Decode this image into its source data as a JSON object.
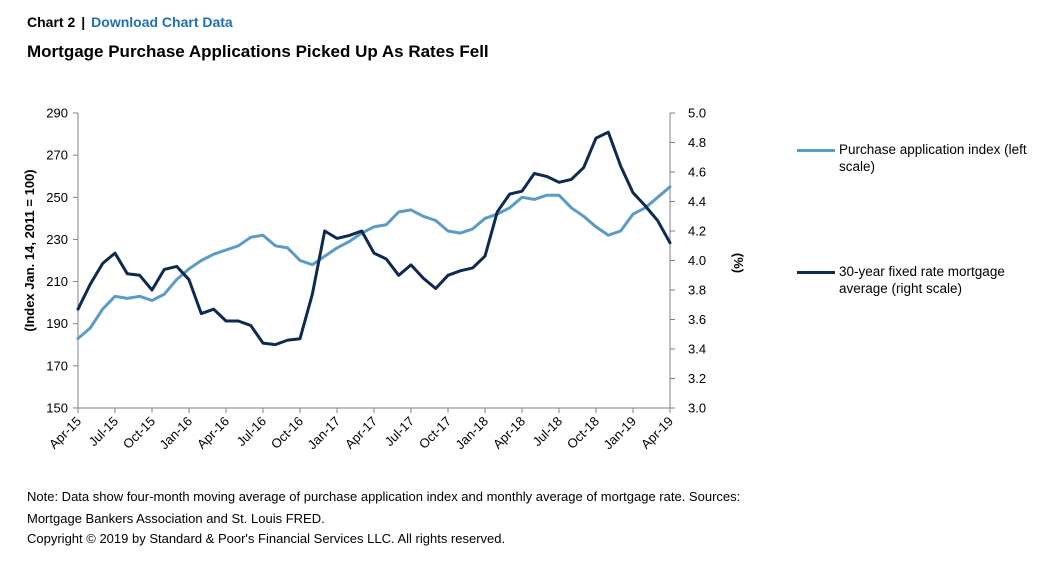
{
  "header": {
    "chart_label": "Chart 2",
    "separator": "|",
    "download_link": "Download Chart Data"
  },
  "title": "Mortgage Purchase Applications Picked Up As Rates Fell",
  "note": "Note: Data show four-month moving average of purchase application index and monthly average of mortgage rate. Sources: Mortgage Bankers Association and St. Louis FRED.",
  "copyright": "Copyright © 2019 by Standard & Poor's Financial Services LLC. All rights reserved.",
  "colors": {
    "index_series": "#5b9bc8",
    "rate_series": "#0d2a52",
    "axis": "#808080"
  },
  "chart_data": {
    "type": "line",
    "title": "Mortgage Purchase Applications Picked Up As Rates Fell",
    "ylabel_left": "(Index Jan. 14, 2011 = 100)",
    "ylabel_right": "(%)",
    "ylim_left": [
      150,
      290
    ],
    "ylim_right": [
      3.0,
      5.0
    ],
    "yticks_left": [
      "150",
      "170",
      "190",
      "210",
      "230",
      "250",
      "270",
      "290"
    ],
    "yticks_right": [
      "3.0",
      "3.2",
      "3.4",
      "3.6",
      "3.8",
      "4.0",
      "4.2",
      "4.4",
      "4.6",
      "4.8",
      "5.0"
    ],
    "x_tick_labels": [
      "Apr-15",
      "Jul-15",
      "Oct-15",
      "Jan-16",
      "Apr-16",
      "Jul-16",
      "Oct-16",
      "Jan-17",
      "Apr-17",
      "Jul-17",
      "Oct-17",
      "Jan-18",
      "Apr-18",
      "Jul-18",
      "Oct-18",
      "Jan-19",
      "Apr-19"
    ],
    "x": [
      "Apr-15",
      "May-15",
      "Jun-15",
      "Jul-15",
      "Aug-15",
      "Sep-15",
      "Oct-15",
      "Nov-15",
      "Dec-15",
      "Jan-16",
      "Feb-16",
      "Mar-16",
      "Apr-16",
      "May-16",
      "Jun-16",
      "Jul-16",
      "Aug-16",
      "Sep-16",
      "Oct-16",
      "Nov-16",
      "Dec-16",
      "Jan-17",
      "Feb-17",
      "Mar-17",
      "Apr-17",
      "May-17",
      "Jun-17",
      "Jul-17",
      "Aug-17",
      "Sep-17",
      "Oct-17",
      "Nov-17",
      "Dec-17",
      "Jan-18",
      "Feb-18",
      "Mar-18",
      "Apr-18",
      "May-18",
      "Jun-18",
      "Jul-18",
      "Aug-18",
      "Sep-18",
      "Oct-18",
      "Nov-18",
      "Dec-18",
      "Jan-19",
      "Feb-19",
      "Mar-19",
      "Apr-19"
    ],
    "series": [
      {
        "name": "Purchase application index (left scale)",
        "axis": "left",
        "values": [
          183,
          188,
          197,
          203,
          202,
          203,
          201,
          204,
          211,
          216,
          220,
          223,
          225,
          227,
          231,
          232,
          227,
          226,
          220,
          218,
          222,
          226,
          229,
          233,
          236,
          237,
          243,
          244,
          241,
          239,
          234,
          233,
          235,
          240,
          242,
          245,
          250,
          249,
          251,
          251,
          245,
          241,
          236,
          232,
          234,
          242,
          245,
          250,
          255
        ]
      },
      {
        "name": "30-year fixed rate mortgage average (right scale)",
        "axis": "right",
        "values": [
          3.67,
          3.84,
          3.98,
          4.05,
          3.91,
          3.9,
          3.8,
          3.94,
          3.96,
          3.87,
          3.64,
          3.67,
          3.59,
          3.59,
          3.56,
          3.44,
          3.43,
          3.46,
          3.47,
          3.77,
          4.2,
          4.15,
          4.17,
          4.2,
          4.05,
          4.01,
          3.9,
          3.97,
          3.88,
          3.81,
          3.9,
          3.93,
          3.95,
          4.03,
          4.33,
          4.45,
          4.47,
          4.59,
          4.57,
          4.53,
          4.55,
          4.63,
          4.83,
          4.87,
          4.64,
          4.46,
          4.37,
          4.27,
          4.12
        ]
      }
    ],
    "grid": false,
    "legend": "right"
  }
}
